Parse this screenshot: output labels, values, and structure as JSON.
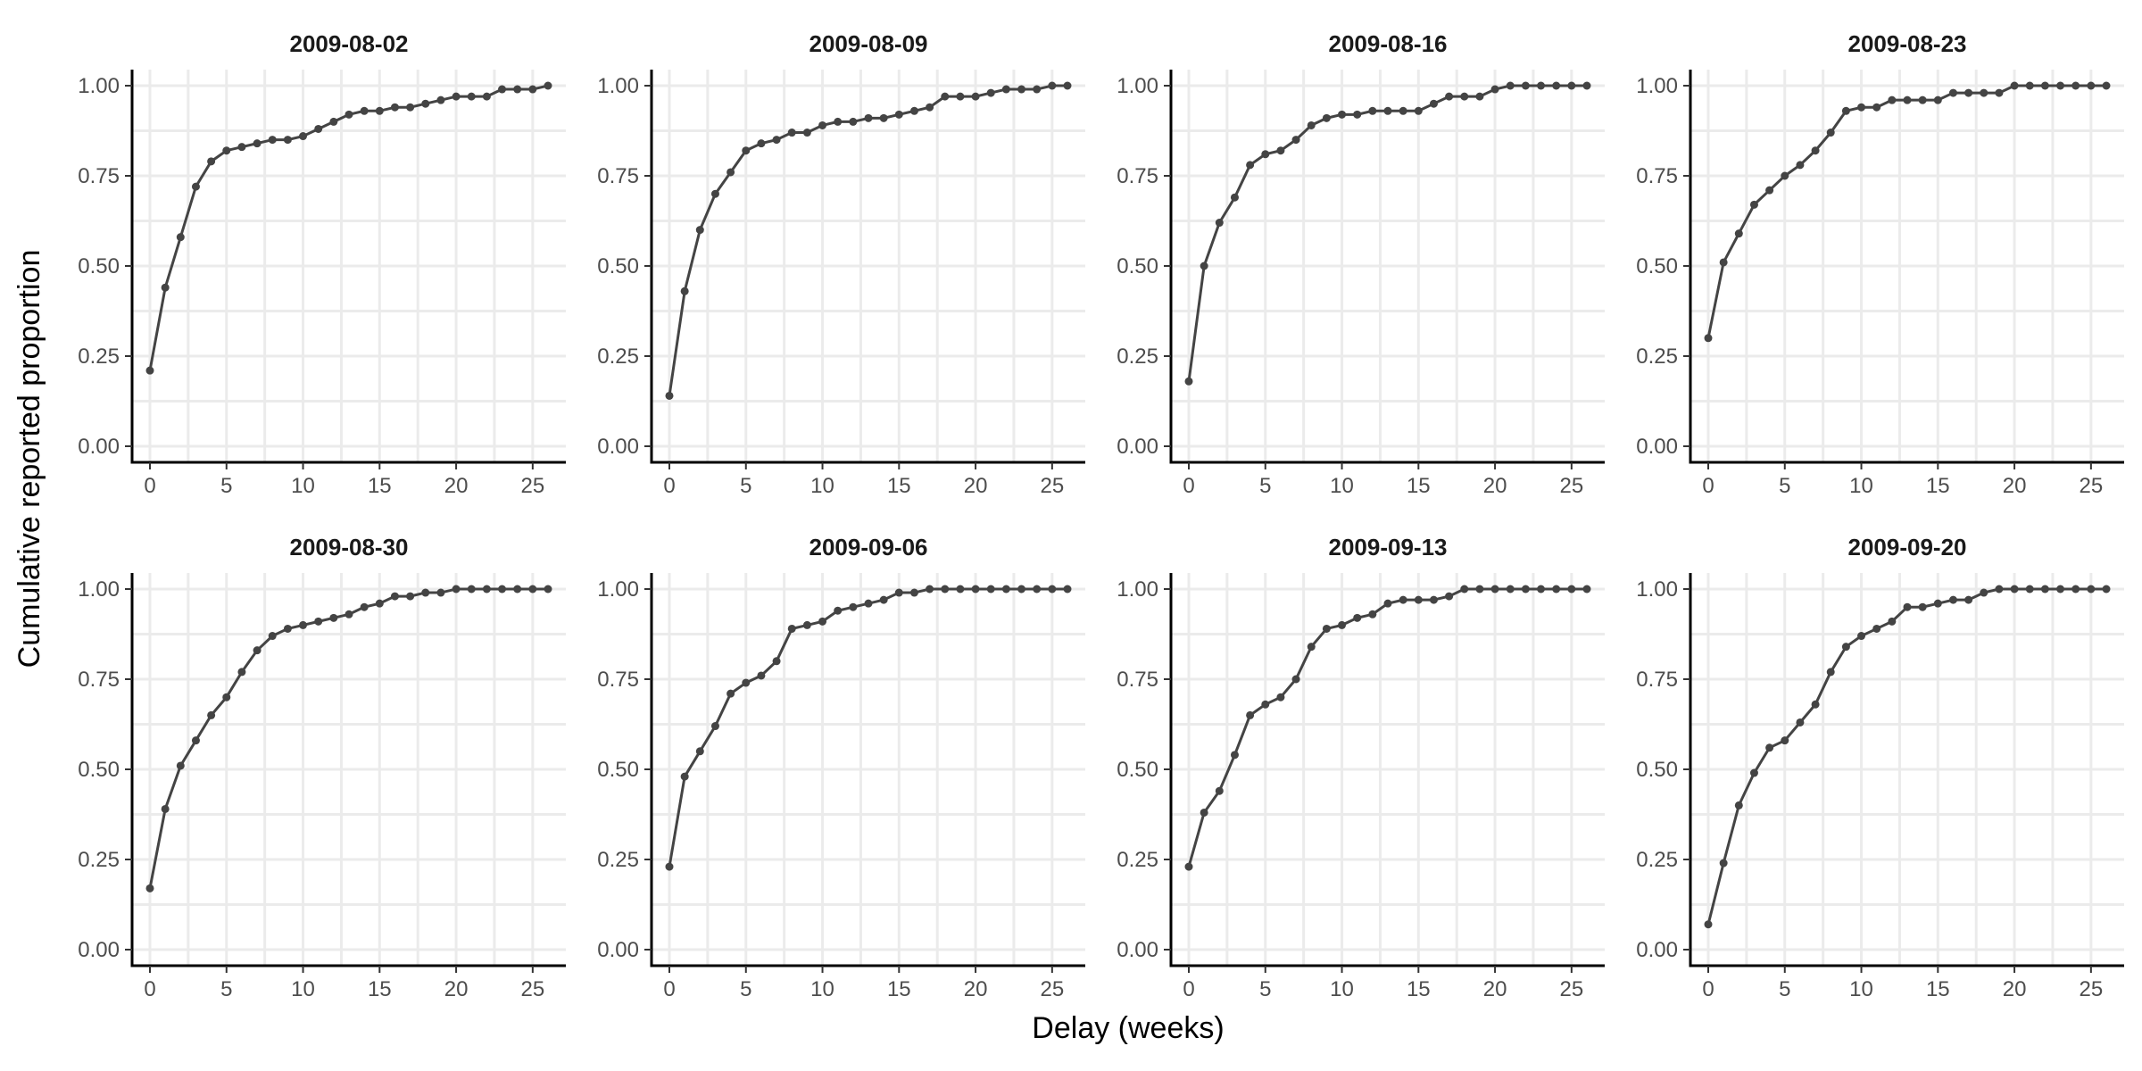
{
  "figure": {
    "xlabel": "Delay (weeks)",
    "ylabel": "Cumulative reported proportion"
  },
  "colors": {
    "series": "#444444"
  },
  "chart_data": {
    "type": "line",
    "xlim": [
      0,
      26
    ],
    "ylim": [
      0,
      1
    ],
    "x_ticks": [
      0,
      5,
      10,
      15,
      20,
      25
    ],
    "y_ticks": [
      "0.00",
      "0.25",
      "0.50",
      "0.75",
      "1.00"
    ],
    "grid": true,
    "x": [
      0,
      1,
      2,
      3,
      4,
      5,
      6,
      7,
      8,
      9,
      10,
      11,
      12,
      13,
      14,
      15,
      16,
      17,
      18,
      19,
      20,
      21,
      22,
      23,
      24,
      25,
      26
    ],
    "panels": [
      {
        "title": "2009-08-02",
        "values": [
          0.21,
          0.44,
          0.58,
          0.72,
          0.79,
          0.82,
          0.83,
          0.84,
          0.85,
          0.85,
          0.86,
          0.88,
          0.9,
          0.92,
          0.93,
          0.93,
          0.94,
          0.94,
          0.95,
          0.96,
          0.97,
          0.97,
          0.97,
          0.99,
          0.99,
          0.99,
          1.0
        ]
      },
      {
        "title": "2009-08-09",
        "values": [
          0.14,
          0.43,
          0.6,
          0.7,
          0.76,
          0.82,
          0.84,
          0.85,
          0.87,
          0.87,
          0.89,
          0.9,
          0.9,
          0.91,
          0.91,
          0.92,
          0.93,
          0.94,
          0.97,
          0.97,
          0.97,
          0.98,
          0.99,
          0.99,
          0.99,
          1.0,
          1.0
        ]
      },
      {
        "title": "2009-08-16",
        "values": [
          0.18,
          0.5,
          0.62,
          0.69,
          0.78,
          0.81,
          0.82,
          0.85,
          0.89,
          0.91,
          0.92,
          0.92,
          0.93,
          0.93,
          0.93,
          0.93,
          0.95,
          0.97,
          0.97,
          0.97,
          0.99,
          1.0,
          1.0,
          1.0,
          1.0,
          1.0,
          1.0
        ]
      },
      {
        "title": "2009-08-23",
        "values": [
          0.3,
          0.51,
          0.59,
          0.67,
          0.71,
          0.75,
          0.78,
          0.82,
          0.87,
          0.93,
          0.94,
          0.94,
          0.96,
          0.96,
          0.96,
          0.96,
          0.98,
          0.98,
          0.98,
          0.98,
          1.0,
          1.0,
          1.0,
          1.0,
          1.0,
          1.0,
          1.0
        ]
      },
      {
        "title": "2009-08-30",
        "values": [
          0.17,
          0.39,
          0.51,
          0.58,
          0.65,
          0.7,
          0.77,
          0.83,
          0.87,
          0.89,
          0.9,
          0.91,
          0.92,
          0.93,
          0.95,
          0.96,
          0.98,
          0.98,
          0.99,
          0.99,
          1.0,
          1.0,
          1.0,
          1.0,
          1.0,
          1.0,
          1.0
        ]
      },
      {
        "title": "2009-09-06",
        "values": [
          0.23,
          0.48,
          0.55,
          0.62,
          0.71,
          0.74,
          0.76,
          0.8,
          0.89,
          0.9,
          0.91,
          0.94,
          0.95,
          0.96,
          0.97,
          0.99,
          0.99,
          1.0,
          1.0,
          1.0,
          1.0,
          1.0,
          1.0,
          1.0,
          1.0,
          1.0,
          1.0
        ]
      },
      {
        "title": "2009-09-13",
        "values": [
          0.23,
          0.38,
          0.44,
          0.54,
          0.65,
          0.68,
          0.7,
          0.75,
          0.84,
          0.89,
          0.9,
          0.92,
          0.93,
          0.96,
          0.97,
          0.97,
          0.97,
          0.98,
          1.0,
          1.0,
          1.0,
          1.0,
          1.0,
          1.0,
          1.0,
          1.0,
          1.0
        ]
      },
      {
        "title": "2009-09-20",
        "values": [
          0.07,
          0.24,
          0.4,
          0.49,
          0.56,
          0.58,
          0.63,
          0.68,
          0.77,
          0.84,
          0.87,
          0.89,
          0.91,
          0.95,
          0.95,
          0.96,
          0.97,
          0.97,
          0.99,
          1.0,
          1.0,
          1.0,
          1.0,
          1.0,
          1.0,
          1.0,
          1.0
        ]
      }
    ]
  }
}
